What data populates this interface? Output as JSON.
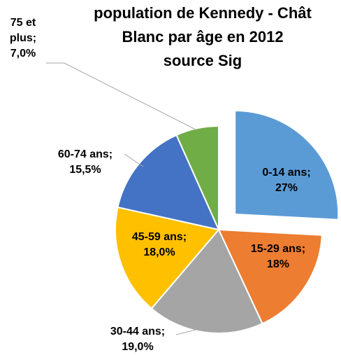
{
  "chart_data": {
    "type": "pie",
    "title": [
      "population de Kennedy - Chât",
      "Blanc par âge en 2012",
      "source Sig"
    ],
    "categories": [
      "0-14 ans;",
      "15-29 ans;",
      "30-44 ans;",
      "45-59 ans;",
      "60-74 ans;",
      "75 et plus;"
    ],
    "values": [
      27,
      18,
      19,
      18,
      15.5,
      7
    ],
    "value_labels": [
      "27%",
      "18%",
      "19,0%",
      "18,0%",
      "15,5%",
      "7,0%"
    ],
    "colors": [
      "#5b9bd5",
      "#ed7d31",
      "#a5a5a5",
      "#ffc000",
      "#4472c4",
      "#70ad47"
    ],
    "exploded": [
      0
    ]
  }
}
